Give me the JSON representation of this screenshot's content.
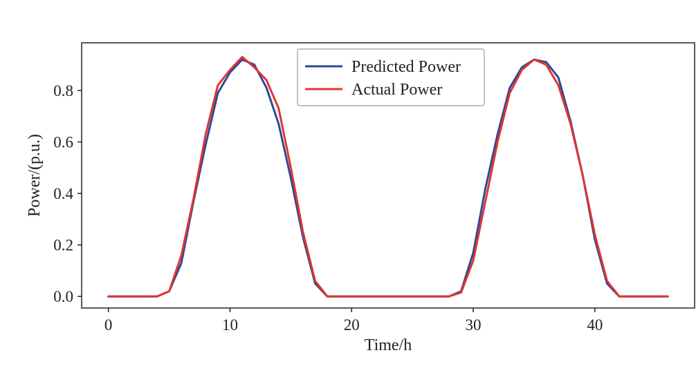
{
  "chart_data": {
    "type": "line",
    "xlabel": "Time/h",
    "ylabel": "Power/(p.u.)",
    "xlim": [
      -2.2,
      48.2
    ],
    "ylim": [
      -0.045,
      0.985
    ],
    "xticks": [
      0,
      10,
      20,
      30,
      40
    ],
    "yticks": [
      0.0,
      0.2,
      0.4,
      0.6,
      0.8
    ],
    "xtick_labels": [
      "0",
      "10",
      "20",
      "30",
      "40"
    ],
    "ytick_labels": [
      "0.0",
      "0.2",
      "0.4",
      "0.6",
      "0.8"
    ],
    "grid": false,
    "legend_position": "top-center",
    "x": [
      0,
      1,
      2,
      3,
      4,
      5,
      6,
      7,
      8,
      9,
      10,
      11,
      12,
      13,
      14,
      15,
      16,
      17,
      18,
      19,
      20,
      21,
      22,
      23,
      24,
      25,
      26,
      27,
      28,
      29,
      30,
      31,
      32,
      33,
      34,
      35,
      36,
      37,
      38,
      39,
      40,
      41,
      42,
      43,
      44,
      45,
      46
    ],
    "series": [
      {
        "name": "Predicted Power",
        "color": "#2a4a94",
        "values": [
          0,
          0,
          0,
          0,
          0,
          0.02,
          0.13,
          0.37,
          0.59,
          0.79,
          0.87,
          0.92,
          0.9,
          0.81,
          0.67,
          0.46,
          0.23,
          0.05,
          0,
          0,
          0,
          0,
          0,
          0,
          0,
          0,
          0,
          0,
          0,
          0.02,
          0.17,
          0.42,
          0.63,
          0.81,
          0.89,
          0.92,
          0.91,
          0.85,
          0.68,
          0.47,
          0.22,
          0.05,
          0,
          0,
          0,
          0,
          0
        ]
      },
      {
        "name": "Actual Power",
        "color": "#e03530",
        "values": [
          0,
          0,
          0,
          0,
          0,
          0.02,
          0.16,
          0.38,
          0.63,
          0.82,
          0.88,
          0.93,
          0.89,
          0.84,
          0.73,
          0.5,
          0.25,
          0.06,
          0,
          0,
          0,
          0,
          0,
          0,
          0,
          0,
          0,
          0,
          0,
          0.015,
          0.14,
          0.37,
          0.6,
          0.79,
          0.88,
          0.92,
          0.9,
          0.82,
          0.67,
          0.47,
          0.24,
          0.06,
          0,
          0,
          0,
          0,
          0
        ]
      }
    ]
  }
}
